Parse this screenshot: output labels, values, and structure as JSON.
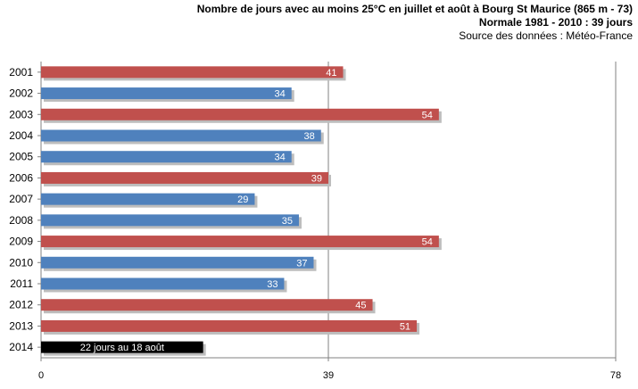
{
  "header": {
    "title": "Nombre de jours avec au moins 25°C en juillet et août à Bourg St Maurice (865 m - 73)",
    "subtitle": "Normale 1981 - 2010 : 39 jours",
    "source": "Source des données : Météo-France"
  },
  "chart_data": {
    "type": "bar",
    "orientation": "horizontal",
    "categories": [
      "2001",
      "2002",
      "2003",
      "2004",
      "2005",
      "2006",
      "2007",
      "2008",
      "2009",
      "2010",
      "2011",
      "2012",
      "2013",
      "2014"
    ],
    "values": [
      41,
      34,
      54,
      38,
      34,
      39,
      29,
      35,
      54,
      37,
      33,
      45,
      51,
      22
    ],
    "value_labels": [
      "41",
      "34",
      "54",
      "38",
      "34",
      "39",
      "29",
      "35",
      "54",
      "37",
      "33",
      "45",
      "51",
      "22 jours au 18 août"
    ],
    "xlim": [
      0,
      78
    ],
    "x_ticks": [
      "0",
      "39",
      "78"
    ],
    "reference_line": 39,
    "grid": false,
    "colors": {
      "above_normal": "#c0504d",
      "below_normal": "#4f81bd",
      "in_progress": "#000000",
      "label": "#ffffff",
      "reference_line": "#808080",
      "axis": "#808080"
    }
  }
}
